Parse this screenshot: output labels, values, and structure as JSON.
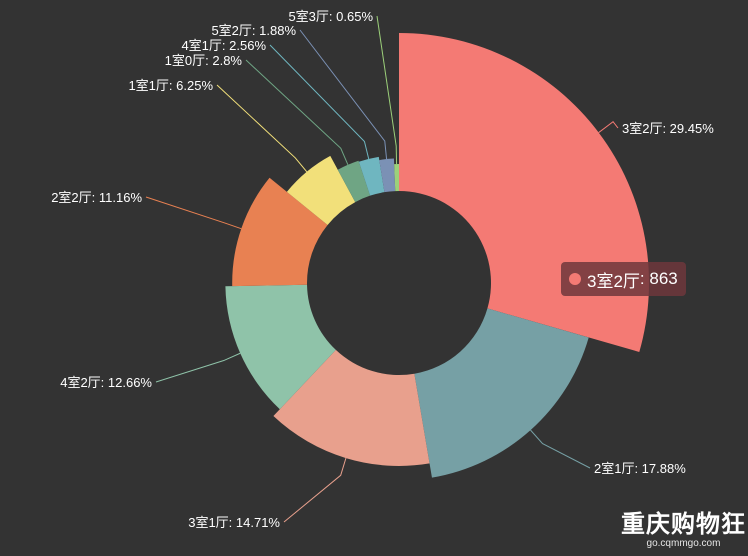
{
  "chart_data": {
    "type": "pie",
    "variant": "rose-donut",
    "slices": [
      {
        "label": "3室2厅",
        "percent": 29.45,
        "color": "#f47a74"
      },
      {
        "label": "2室1厅",
        "percent": 17.88,
        "color": "#76a0a5"
      },
      {
        "label": "3室1厅",
        "percent": 14.71,
        "color": "#e8a08d"
      },
      {
        "label": "4室2厅",
        "percent": 12.66,
        "color": "#8fc3a9"
      },
      {
        "label": "2室2厅",
        "percent": 11.16,
        "color": "#e88152"
      },
      {
        "label": "1室1厅",
        "percent": 6.25,
        "color": "#f2e07a"
      },
      {
        "label": "1室0厅",
        "percent": 2.8,
        "color": "#6fa584"
      },
      {
        "label": "4室1厅",
        "percent": 2.56,
        "color": "#6fb6c0"
      },
      {
        "label": "5室2厅",
        "percent": 1.88,
        "color": "#7b91b5"
      },
      {
        "label": "5室3厅",
        "percent": 0.65,
        "color": "#9cd07a"
      }
    ]
  },
  "tooltip": {
    "label": "3室2厅",
    "value": "863",
    "separator": ": ",
    "color": "#f47a74"
  },
  "watermark": {
    "title": "重庆购物狂",
    "url": "go.cqmmgo.com"
  }
}
